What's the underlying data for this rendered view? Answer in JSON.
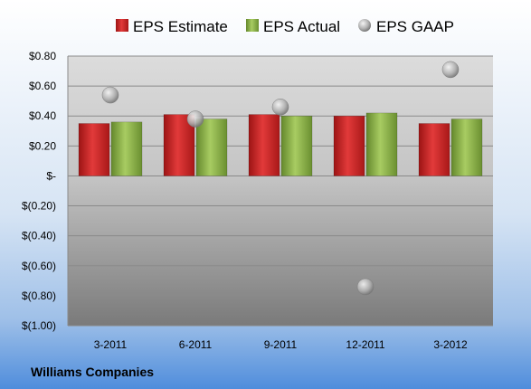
{
  "chart_data": {
    "type": "bar",
    "categories": [
      "3-2011",
      "6-2011",
      "9-2011",
      "12-2011",
      "3-2012"
    ],
    "series": [
      {
        "name": "EPS Estimate",
        "type": "bar",
        "color": "#d42a2a",
        "values": [
          0.35,
          0.41,
          0.41,
          0.4,
          0.35
        ]
      },
      {
        "name": "EPS Actual",
        "type": "bar",
        "color": "#92b94a",
        "values": [
          0.36,
          0.38,
          0.4,
          0.42,
          0.38
        ]
      },
      {
        "name": "EPS GAAP",
        "type": "scatter",
        "color": "#b4b4b4",
        "values": [
          0.54,
          0.38,
          0.46,
          -0.74,
          0.71
        ]
      }
    ],
    "y_tick_labels": [
      "$0.80",
      "$0.60",
      "$0.40",
      "$0.20",
      "$-",
      "$(0.20)",
      "$(0.40)",
      "$(0.60)",
      "$(0.80)",
      "$(1.00)"
    ],
    "y_ticks": [
      0.8,
      0.6,
      0.4,
      0.2,
      0,
      -0.2,
      -0.4,
      -0.6,
      -0.8,
      -1.0
    ],
    "ylim": [
      -1.0,
      0.8
    ],
    "grid": true,
    "legend_position": "top",
    "title": "",
    "xlabel": "",
    "ylabel": "",
    "company": "Williams Companies"
  }
}
